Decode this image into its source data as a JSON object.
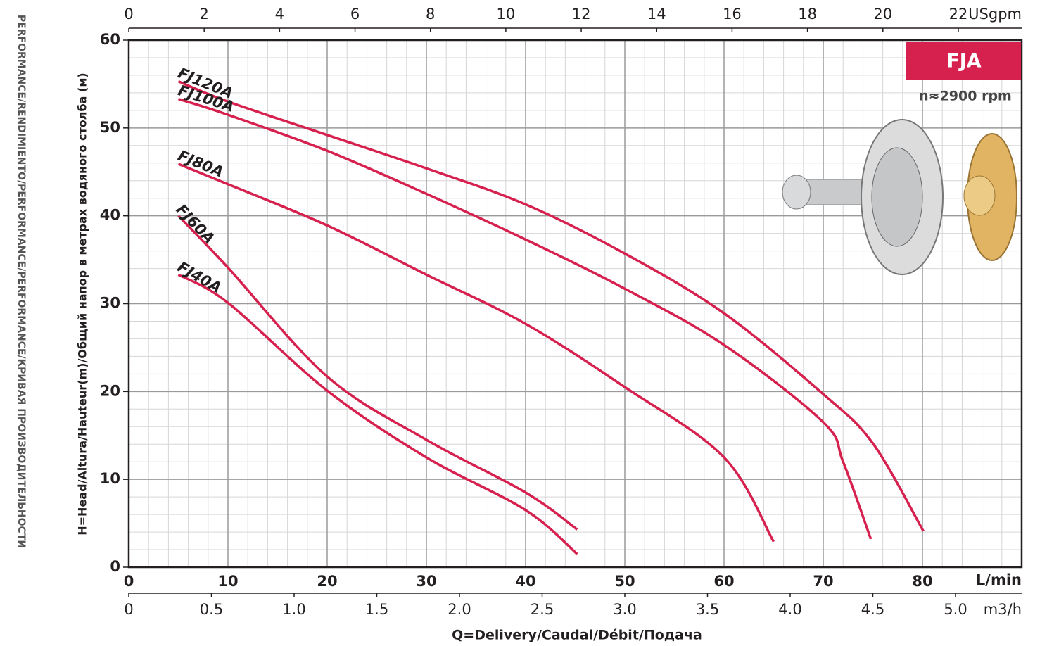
{
  "chart_data": {
    "type": "line",
    "side_title": "PERFORMANCE/RENDIMIENTO/PERFORMANCE/PERFORMANCE/КРИВАЯ ПРОИЗВОДИТЕЛЬНОСТИ",
    "title": "FJA",
    "subtitle": "n≈2900 rpm",
    "y_label": "H=Head/Altura/Hauteur(m)/Общий напор в метрах водяного столба (м)",
    "x_label": "Q=Delivery/Caudal/Débit/Подача",
    "x_unit": "L/min",
    "xlim": [
      0,
      90
    ],
    "xticks": [
      0,
      10,
      20,
      30,
      40,
      50,
      60,
      70,
      80
    ],
    "ylim": [
      0,
      60
    ],
    "yticks": [
      0,
      10,
      20,
      30,
      40,
      50,
      60
    ],
    "grid": true,
    "minor_grid": {
      "x": 2,
      "y": 2
    },
    "top_axis": {
      "unit": "USgpm",
      "xlim": [
        0,
        23.68
      ],
      "xticks": [
        0,
        2,
        4,
        6,
        8,
        10,
        12,
        14,
        16,
        18,
        20,
        22
      ]
    },
    "bottom_axis": {
      "unit": "m3/h",
      "xlim": [
        0,
        5.4
      ],
      "xticks": [
        0,
        0.5,
        {
          "value": 1,
          "label": "1.0"
        },
        1.5,
        {
          "value": 2,
          "label": "2.0"
        },
        2.5,
        {
          "value": 3,
          "label": "3.0"
        },
        3.5,
        {
          "value": 4,
          "label": "4.0"
        },
        4.5,
        {
          "value": 5,
          "label": "5.0"
        }
      ]
    },
    "series": [
      {
        "name": "FJ120A",
        "color": "#d6204e",
        "x": [
          5,
          10,
          20,
          30,
          40,
          50,
          60,
          70,
          75,
          80.1
        ],
        "values": [
          55.3,
          53.0,
          49.2,
          45.4,
          41.3,
          35.7,
          28.9,
          19.7,
          14.1,
          4.1
        ]
      },
      {
        "name": "FJ100A",
        "color": "#d6204e",
        "x": [
          5,
          10,
          20,
          30,
          40,
          50,
          60,
          70,
          72,
          74.8
        ],
        "values": [
          53.3,
          51.5,
          47.4,
          42.5,
          37.3,
          31.7,
          25.3,
          16.5,
          12,
          3.2
        ]
      },
      {
        "name": "FJ80A",
        "color": "#d6204e",
        "x": [
          5,
          10,
          20,
          30,
          40,
          50,
          60,
          65
        ],
        "values": [
          45.9,
          43.6,
          38.9,
          33.3,
          27.7,
          20.5,
          12.5,
          2.9
        ]
      },
      {
        "name": "FJ60A",
        "color": "#d6204e",
        "x": [
          5,
          10,
          20,
          30,
          40,
          45.2
        ],
        "values": [
          40,
          34.1,
          21.7,
          14.5,
          8.5,
          4.3
        ]
      },
      {
        "name": "FJ40A",
        "color": "#d6204e",
        "x": [
          5,
          10,
          20,
          30,
          40,
          45.2
        ],
        "values": [
          33.3,
          30.1,
          20.1,
          12.5,
          6.5,
          1.5
        ]
      }
    ]
  }
}
